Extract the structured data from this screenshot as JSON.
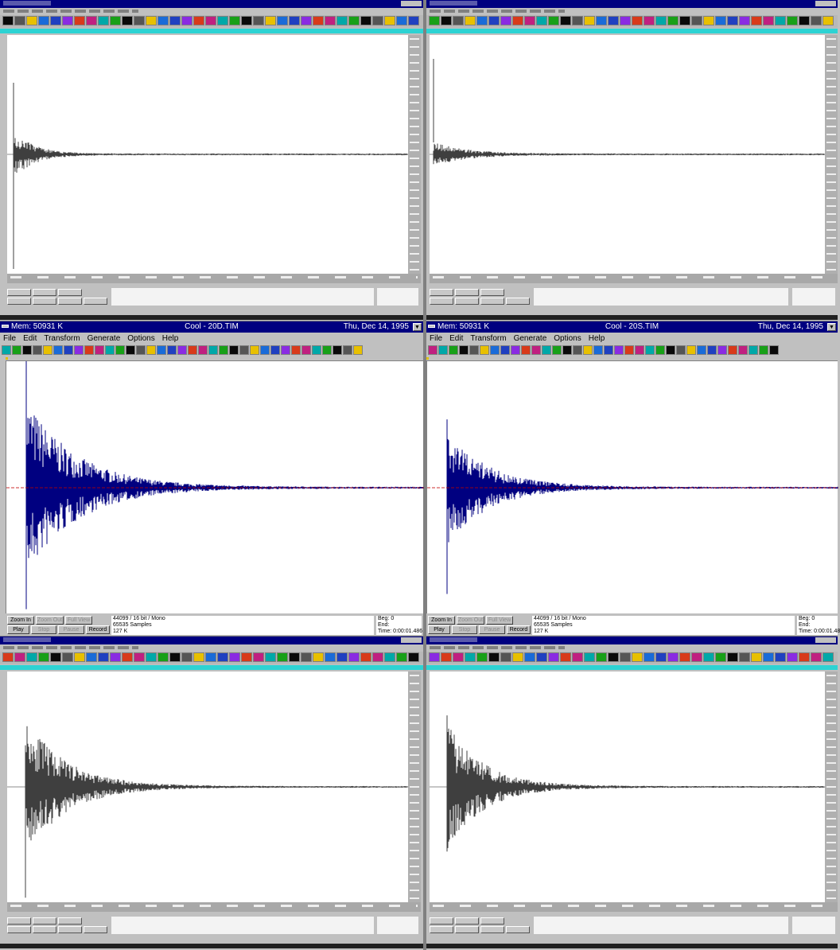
{
  "top_windows": [
    {
      "id": "top-left"
    },
    {
      "id": "top-right"
    }
  ],
  "middle_windows": [
    {
      "mem": "Mem: 50931 K",
      "filename": "Cool - 20D.TIM",
      "date": "Thu, Dec 14, 1995",
      "menu": [
        "File",
        "Edit",
        "Transform",
        "Generate",
        "Options",
        "Help"
      ],
      "buttons": {
        "zoom_in": "Zoom In",
        "zoom_out": "Zoom Out",
        "full_view": "Full View",
        "play": "Play",
        "stop": "Stop",
        "pause": "Pause",
        "record": "Record"
      },
      "info": {
        "format": "44099 / 16 bit / Mono",
        "samples": "65535 Samples",
        "size": "127 K",
        "beg": "Beg: 0",
        "end": "End:",
        "time": "Time: 0:00:01.486"
      }
    },
    {
      "mem": "Mem: 50931 K",
      "filename": "Cool - 20S.TIM",
      "date": "Thu, Dec 14, 1995",
      "menu": [
        "File",
        "Edit",
        "Transform",
        "Generate",
        "Options",
        "Help"
      ],
      "buttons": {
        "zoom_in": "Zoom In",
        "zoom_out": "Zoom Out",
        "full_view": "Full View",
        "play": "Play",
        "stop": "Stop",
        "pause": "Pause",
        "record": "Record"
      },
      "info": {
        "format": "44099 / 16 bit / Mono",
        "samples": "65535 Samples",
        "size": "127 K",
        "beg": "Beg: 0",
        "end": "End:",
        "time": "Time: 0:00:01.48"
      }
    }
  ],
  "colors": {
    "titlebar": "#000080",
    "waveform_mid": "#000080",
    "center_line": "#c00000",
    "waveform_blur": "#000000",
    "window_bg": "#c0c0c0",
    "cyan_bar": "#2dd3d3"
  }
}
